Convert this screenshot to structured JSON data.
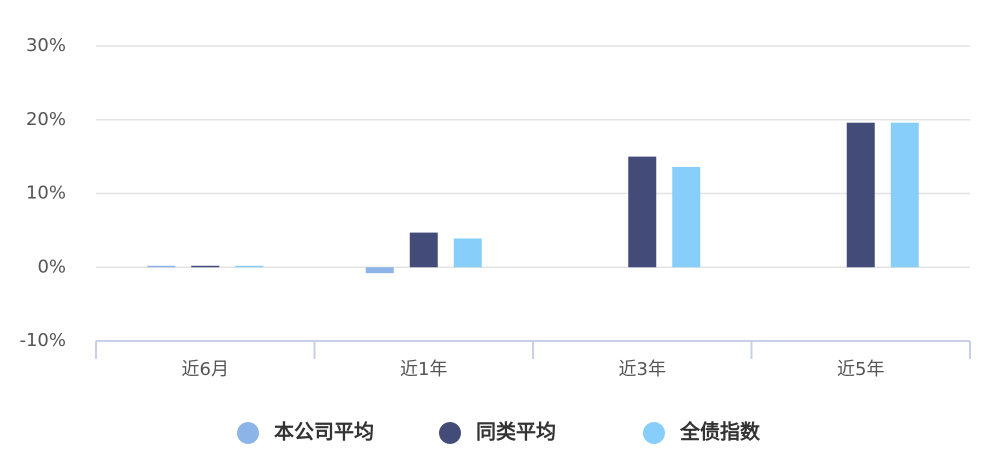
{
  "chart_data": {
    "type": "bar",
    "categories": [
      "近6月",
      "近1年",
      "近3年",
      "近5年"
    ],
    "series": [
      {
        "name": "本公司平均",
        "color": "#8cb4e8",
        "values": [
          0.2,
          -0.8,
          null,
          null
        ]
      },
      {
        "name": "同类平均",
        "color": "#434c78",
        "values": [
          0.2,
          4.7,
          15.0,
          19.6
        ]
      },
      {
        "name": "全债指数",
        "color": "#87cefa",
        "values": [
          0.2,
          3.9,
          13.6,
          19.6
        ]
      }
    ],
    "ylim": [
      -10,
      30
    ],
    "yticks": [
      {
        "value": -10,
        "label": "-10%"
      },
      {
        "value": 0,
        "label": "0%"
      },
      {
        "value": 10,
        "label": "10%"
      },
      {
        "value": 20,
        "label": "20%"
      },
      {
        "value": 30,
        "label": "30%"
      }
    ],
    "grid": true,
    "legend": "bottom"
  }
}
